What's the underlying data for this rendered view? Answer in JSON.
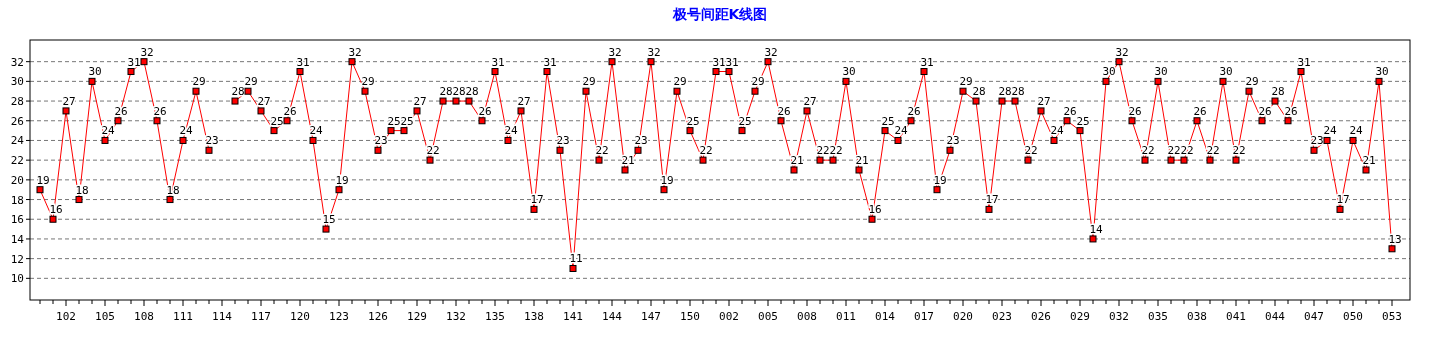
{
  "chart_data": {
    "type": "line",
    "title": "极号间距K线图",
    "categories": [
      null,
      null,
      "102",
      null,
      null,
      "105",
      null,
      null,
      "108",
      null,
      null,
      "111",
      null,
      null,
      "114",
      null,
      null,
      "117",
      null,
      null,
      "120",
      null,
      null,
      "123",
      null,
      null,
      "126",
      null,
      null,
      "129",
      null,
      null,
      "132",
      null,
      null,
      "135",
      null,
      null,
      "138",
      null,
      null,
      "141",
      null,
      null,
      "144",
      null,
      null,
      "147",
      null,
      null,
      "150",
      null,
      null,
      "002",
      null,
      null,
      "005",
      null,
      null,
      "008",
      null,
      null,
      "011",
      null,
      null,
      "014",
      null,
      null,
      "017",
      null,
      null,
      "020",
      null,
      null,
      "023",
      null,
      null,
      "026",
      null,
      null,
      "029",
      null,
      null,
      "032",
      null,
      null,
      "035",
      null,
      null,
      "038",
      null,
      null,
      "041",
      null,
      null,
      "044",
      null,
      null,
      "047",
      null,
      null,
      "050",
      null,
      null,
      "053"
    ],
    "series": [
      {
        "color": "#ff0000",
        "values": [
          19,
          16,
          27,
          18,
          30,
          24,
          26,
          31,
          32,
          26,
          18,
          24,
          29,
          23,
          null,
          28,
          29,
          27,
          25,
          26,
          31,
          24,
          15,
          19,
          32,
          29,
          23,
          25,
          25,
          27,
          22,
          28,
          28,
          28,
          26,
          31,
          24,
          27,
          17,
          31,
          23,
          11,
          29,
          22,
          32,
          21,
          23,
          32,
          19,
          29,
          25,
          22,
          31,
          31,
          25,
          29,
          32,
          26,
          21,
          27,
          22,
          22,
          30,
          21,
          16,
          25,
          24,
          26,
          31,
          19,
          23,
          29,
          28,
          17,
          28,
          28,
          22,
          27,
          24,
          26,
          25,
          14,
          30,
          32,
          26,
          22,
          30,
          22,
          22,
          26,
          22,
          30,
          22,
          29,
          26,
          28,
          26,
          31,
          23,
          24,
          17,
          24,
          21,
          30,
          13
        ]
      }
    ],
    "ylim": [
      7.8,
      34.2
    ],
    "yticks": [
      10,
      12,
      14,
      16,
      18,
      20,
      22,
      24,
      26,
      28,
      30,
      32
    ],
    "grid": "y",
    "marker": "square",
    "line_style": "solid",
    "data_labels": true
  }
}
